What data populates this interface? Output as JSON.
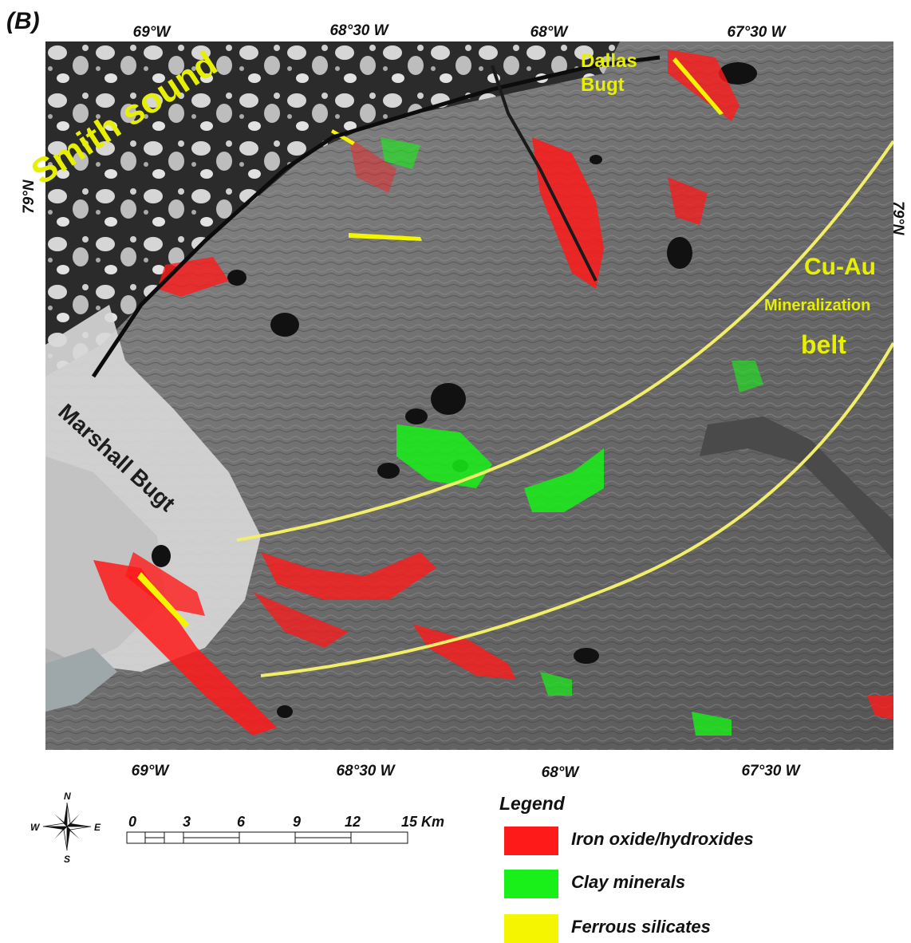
{
  "panel_label": "(B)",
  "top_longitudes": [
    "69°W",
    "68°30 W",
    "68°W",
    "67°30 W"
  ],
  "bottom_longitudes": [
    "69°W",
    "68°30 W",
    "68°W",
    "67°30 W"
  ],
  "latitude_left": "79°N",
  "latitude_right": "79°N",
  "place_labels": {
    "dallas": "Dallas",
    "bugt": "Bugt",
    "smith": "Smith sound",
    "marshall": "Marshall Bugt",
    "cuau": "Cu-Au",
    "mineralization": "Mineralization",
    "belt": "belt"
  },
  "colors": {
    "iron": "#ff0000",
    "clay": "#00ff00",
    "ferrous": "#ffff00",
    "belt_line": "#f2ee6a",
    "label_yellow": "#e6f000"
  },
  "legend": {
    "title": "Legend",
    "items": [
      {
        "label": "Iron oxide/hydroxides",
        "color": "#ff1a1a"
      },
      {
        "label": "Clay minerals",
        "color": "#19f019"
      },
      {
        "label": "Ferrous silicates",
        "color": "#f5f500"
      }
    ]
  },
  "scale": {
    "ticks": [
      "0",
      "3",
      "6",
      "9",
      "12",
      "15 Km"
    ]
  },
  "compass": {
    "n": "N",
    "s": "S",
    "e": "E",
    "w": "W"
  }
}
